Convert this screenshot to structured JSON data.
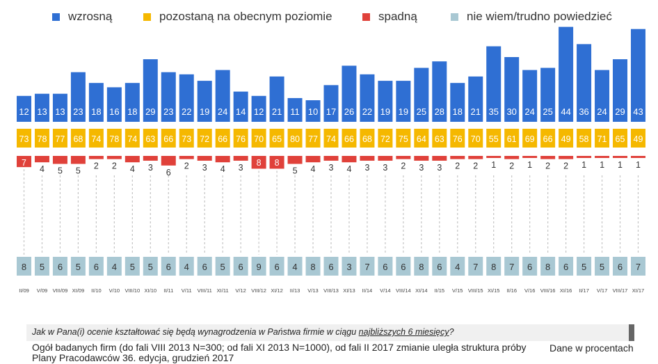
{
  "legend": [
    {
      "label": "wzrosną",
      "color": "#2f6fd3"
    },
    {
      "label": "pozostaną na obecnym poziomie",
      "color": "#f5b800"
    },
    {
      "label": "spadną",
      "color": "#e0413a"
    },
    {
      "label": "nie wiem/trudno powiedzieć",
      "color": "#a9c8d3"
    }
  ],
  "question": {
    "before": "Jak w Pana(i) ocenie kształtować się będą wynagrodzenia w Państwa firmie w ciągu ",
    "underlined": "najbliższych 6 miesięcy",
    "after": "?"
  },
  "note_line1": "Ogół badanych firm (do fali VIII 2013 N=300; od fali XI 2013 N=1000), od fali II 2017 zmianie uległa struktura próby",
  "note_line2": "Plany Pracodawców 36. edycja, grudzień 2017",
  "unit_note": "Dane w procentach",
  "chart_data": {
    "type": "bar",
    "title": "",
    "categories": [
      "II/09",
      "V/09",
      "VIII/09",
      "XI/09",
      "II/10",
      "V/10",
      "VIII/10",
      "XI/10",
      "II/11",
      "V/11",
      "VIII/11",
      "XI/11",
      "V/12",
      "VIII/12",
      "XI/12",
      "II/13",
      "V/13",
      "VIII/13",
      "XI/13",
      "II/14",
      "V/14",
      "VIII/14",
      "XI/14",
      "II/15",
      "V/15",
      "VIII/15",
      "XI/15",
      "II/16",
      "V/16",
      "VIII/16",
      "XI/16",
      "II/17",
      "V/17",
      "VIII/17",
      "XI/17"
    ],
    "series": [
      {
        "name": "wzrosną",
        "color": "#2f6fd3",
        "values": [
          12,
          13,
          13,
          23,
          18,
          16,
          18,
          29,
          23,
          22,
          19,
          24,
          14,
          12,
          21,
          11,
          10,
          17,
          26,
          22,
          19,
          19,
          25,
          28,
          18,
          21,
          35,
          30,
          24,
          25,
          44,
          36,
          24,
          29,
          43
        ]
      },
      {
        "name": "pozostaną na obecnym poziomie",
        "color": "#f5b800",
        "values": [
          73,
          78,
          77,
          68,
          74,
          78,
          74,
          63,
          66,
          73,
          72,
          66,
          76,
          70,
          65,
          80,
          77,
          74,
          66,
          68,
          72,
          75,
          64,
          63,
          76,
          70,
          55,
          61,
          69,
          66,
          49,
          58,
          71,
          65,
          49
        ]
      },
      {
        "name": "spadną",
        "color": "#e0413a",
        "values": [
          7,
          4,
          5,
          5,
          2,
          2,
          4,
          3,
          6,
          2,
          3,
          4,
          3,
          8,
          8,
          5,
          4,
          3,
          4,
          3,
          3,
          2,
          3,
          3,
          2,
          2,
          1,
          2,
          1,
          2,
          2,
          1,
          1,
          1,
          1
        ]
      },
      {
        "name": "nie wiem/trudno powiedzieć",
        "color": "#a9c8d3",
        "values": [
          8,
          5,
          6,
          5,
          6,
          4,
          5,
          5,
          6,
          4,
          6,
          5,
          6,
          9,
          6,
          4,
          8,
          6,
          3,
          7,
          6,
          6,
          8,
          6,
          4,
          7,
          8,
          7,
          6,
          8,
          6,
          5,
          5,
          6,
          7
        ]
      }
    ],
    "xlabel": "",
    "ylabel": "",
    "grid": false,
    "legend_position": "top"
  }
}
